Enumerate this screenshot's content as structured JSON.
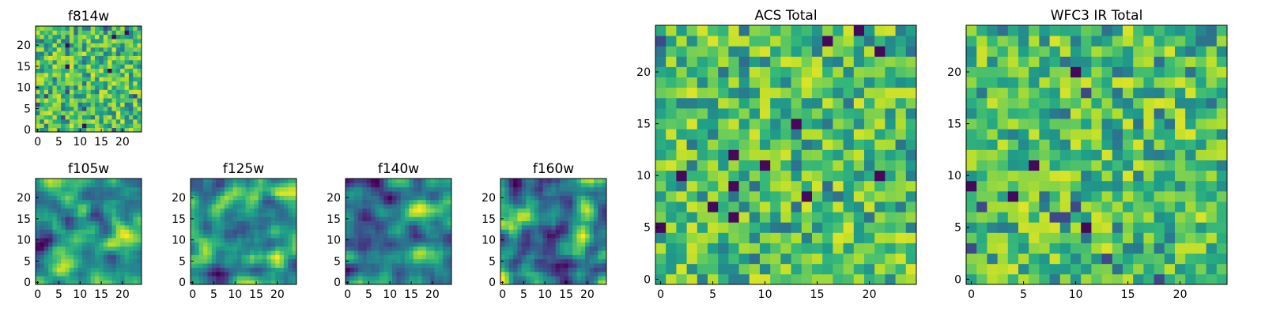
{
  "chart_data": [
    {
      "type": "heatmap",
      "id": "f814w",
      "title": "f814w",
      "cols": 25,
      "rows": 25,
      "xlim": [
        -0.5,
        24.5
      ],
      "ylim": [
        -0.5,
        24.5
      ],
      "xticks": [
        0,
        5,
        10,
        15,
        20
      ],
      "yticks": [
        0,
        5,
        10,
        15,
        20
      ],
      "colormap": "viridis",
      "seed": 814,
      "style": "noise"
    },
    {
      "type": "heatmap",
      "id": "f105w",
      "title": "f105w",
      "cols": 25,
      "rows": 25,
      "xlim": [
        -0.5,
        24.5
      ],
      "ylim": [
        -0.5,
        24.5
      ],
      "xticks": [
        0,
        5,
        10,
        15,
        20
      ],
      "yticks": [
        0,
        5,
        10,
        15,
        20
      ],
      "colormap": "viridis",
      "seed": 105,
      "style": "smooth"
    },
    {
      "type": "heatmap",
      "id": "f125w",
      "title": "f125w",
      "cols": 25,
      "rows": 25,
      "xlim": [
        -0.5,
        24.5
      ],
      "ylim": [
        -0.5,
        24.5
      ],
      "xticks": [
        0,
        5,
        10,
        15,
        20
      ],
      "yticks": [
        0,
        5,
        10,
        15,
        20
      ],
      "colormap": "viridis",
      "seed": 125,
      "style": "smooth"
    },
    {
      "type": "heatmap",
      "id": "f140w",
      "title": "f140w",
      "cols": 25,
      "rows": 25,
      "xlim": [
        -0.5,
        24.5
      ],
      "ylim": [
        -0.5,
        24.5
      ],
      "xticks": [
        0,
        5,
        10,
        15,
        20
      ],
      "yticks": [
        0,
        5,
        10,
        15,
        20
      ],
      "colormap": "viridis",
      "seed": 140,
      "style": "smooth"
    },
    {
      "type": "heatmap",
      "id": "f160w",
      "title": "f160w",
      "cols": 25,
      "rows": 25,
      "xlim": [
        -0.5,
        24.5
      ],
      "ylim": [
        -0.5,
        24.5
      ],
      "xticks": [
        0,
        5,
        10,
        15,
        20
      ],
      "yticks": [
        0,
        5,
        10,
        15,
        20
      ],
      "colormap": "viridis",
      "seed": 160,
      "style": "smooth"
    },
    {
      "type": "heatmap",
      "id": "acs-total",
      "title": "ACS Total",
      "cols": 25,
      "rows": 25,
      "xlim": [
        -0.5,
        24.5
      ],
      "ylim": [
        -0.5,
        24.5
      ],
      "xticks": [
        0,
        5,
        10,
        15,
        20
      ],
      "yticks": [
        0,
        5,
        10,
        15,
        20
      ],
      "colormap": "viridis",
      "seed": 7,
      "style": "noise"
    },
    {
      "type": "heatmap",
      "id": "wfc3-ir-total",
      "title": "WFC3 IR Total",
      "cols": 25,
      "rows": 25,
      "xlim": [
        -0.5,
        24.5
      ],
      "ylim": [
        -0.5,
        24.5
      ],
      "xticks": [
        0,
        5,
        10,
        15,
        20
      ],
      "yticks": [
        0,
        5,
        10,
        15,
        20
      ],
      "colormap": "viridis",
      "seed": 3,
      "style": "noise"
    }
  ]
}
